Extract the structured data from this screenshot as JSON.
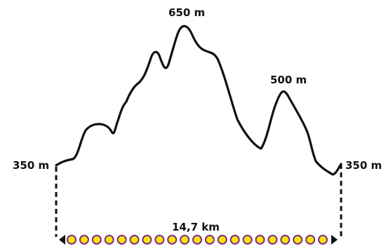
{
  "profile": {
    "start_elevation": "350 m",
    "end_elevation": "350 m",
    "peak_label": "650 m",
    "second_peak_label": "500 m",
    "distance": "14,7 km"
  },
  "colors": {
    "line": "#111111",
    "dot_fill": "#ffe600",
    "dot_stroke": "#7a2a8e"
  }
}
